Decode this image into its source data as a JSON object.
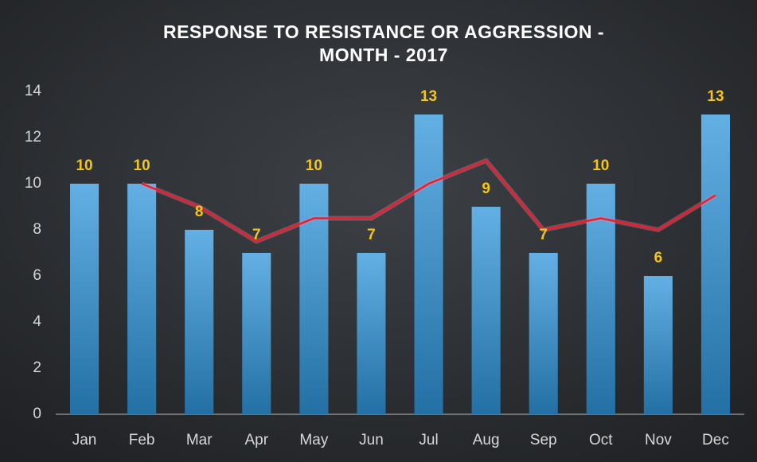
{
  "chart_data": {
    "type": "bar",
    "title": [
      "RESPONSE TO RESISTANCE OR AGGRESSION -",
      "MONTH - 2017"
    ],
    "categories": [
      "Jan",
      "Feb",
      "Mar",
      "Apr",
      "May",
      "Jun",
      "Jul",
      "Aug",
      "Sep",
      "Oct",
      "Nov",
      "Dec"
    ],
    "series": [
      {
        "type": "bar",
        "color": "#2f95dc",
        "values": [
          10,
          10,
          8,
          7,
          10,
          7,
          13,
          9,
          7,
          10,
          6,
          13
        ]
      },
      {
        "type": "line",
        "color": "#e8202e",
        "values": [
          null,
          10,
          9,
          7.5,
          8.5,
          8.5,
          10,
          11,
          8,
          8.5,
          8,
          9.5
        ]
      }
    ],
    "ylim": [
      0,
      14
    ],
    "yticks": [
      0,
      2,
      4,
      6,
      8,
      10,
      12,
      14
    ],
    "grid": false
  }
}
